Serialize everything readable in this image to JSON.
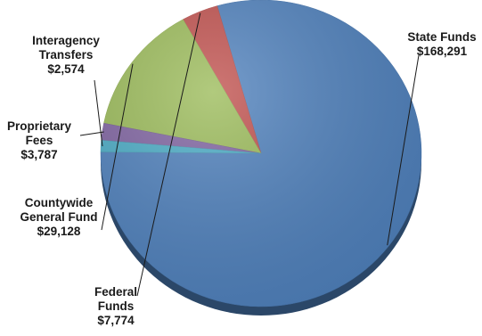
{
  "chart_data": {
    "type": "pie",
    "series": [
      {
        "slices": [
          {
            "label_lines": [
              "State Funds",
              "$168,291"
            ],
            "value": 168291,
            "color": "#4f81bd"
          },
          {
            "label_lines": [
              "Federal",
              "Funds",
              "$7,774"
            ],
            "value": 7774,
            "color": "#c0504d"
          },
          {
            "label_lines": [
              "Countywide",
              "General Fund",
              "$29,128"
            ],
            "value": 29128,
            "color": "#9bbb59"
          },
          {
            "label_lines": [
              "Proprietary",
              "Fees",
              "$3,787"
            ],
            "value": 3787,
            "color": "#8064a2"
          },
          {
            "label_lines": [
              "Interagency",
              "Transfers",
              "$2,574"
            ],
            "value": 2574,
            "color": "#4bacc6"
          }
        ]
      }
    ],
    "legend": "none",
    "labels": "outside-with-leader-lines"
  }
}
